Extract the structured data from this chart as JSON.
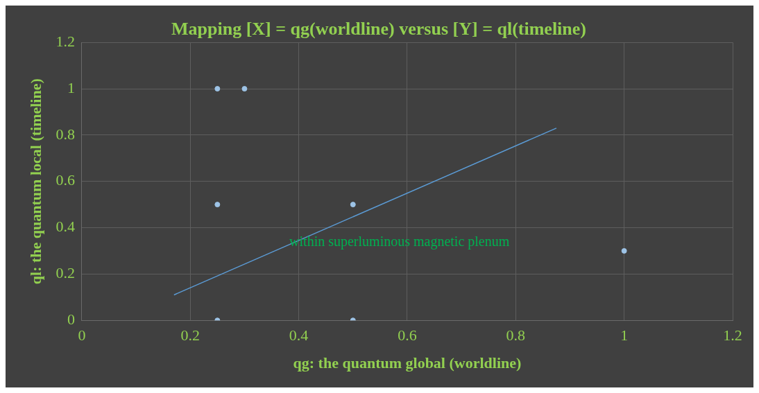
{
  "chart_data": {
    "type": "scatter",
    "title": "Mapping [X] = qg(worldline) versus [Y] = ql(timeline)",
    "xlabel": "qg: the quantum global (worldline)",
    "ylabel": "ql: the quantum local (timeline)",
    "annotations": [
      "within superluminous magnetic plenum"
    ],
    "series": [
      {
        "color": "#9dc3e6",
        "x": [
          0.25,
          0.3,
          0.25,
          0.5,
          0.25,
          0.5,
          1
        ],
        "values": [
          1,
          1,
          0.5,
          0.5,
          0,
          0,
          0.3
        ],
        "marker": "circle"
      },
      {
        "type": "line",
        "color": "#5b9bd5",
        "x": [
          0.17,
          0.875
        ],
        "values": [
          0.11,
          0.83
        ],
        "marker": "none",
        "line_style": "solid"
      }
    ],
    "xlim": [
      0,
      1.2
    ],
    "xticks": [
      0,
      0.2,
      0.4,
      0.6,
      0.8,
      1,
      1.2
    ],
    "ylim": [
      0,
      1.2
    ],
    "yticks": [
      0,
      0.2,
      0.4,
      0.6,
      0.8,
      1,
      1.2
    ],
    "grid": true,
    "legend": false
  }
}
